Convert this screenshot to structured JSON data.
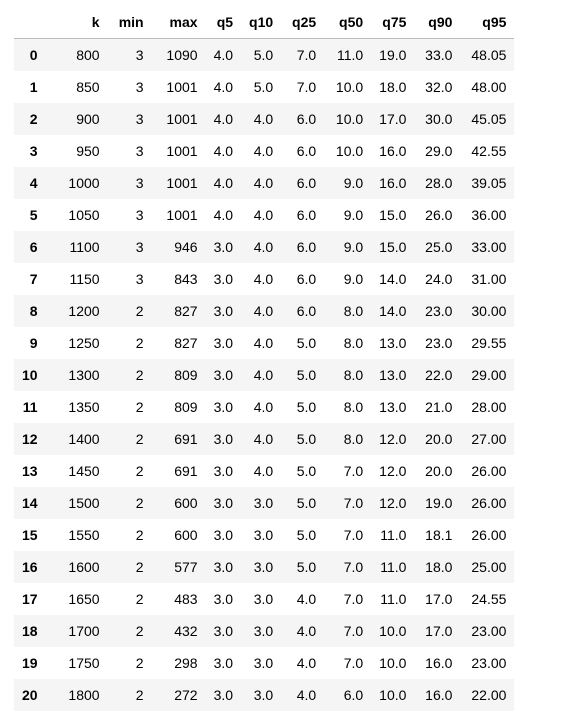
{
  "table": {
    "columns": [
      "",
      "k",
      "min",
      "max",
      "q5",
      "q10",
      "q25",
      "q50",
      "q75",
      "q90",
      "q95"
    ],
    "rows": [
      [
        "0",
        "800",
        "3",
        "1090",
        "4.0",
        "5.0",
        "7.0",
        "11.0",
        "19.0",
        "33.0",
        "48.05"
      ],
      [
        "1",
        "850",
        "3",
        "1001",
        "4.0",
        "5.0",
        "7.0",
        "10.0",
        "18.0",
        "32.0",
        "48.00"
      ],
      [
        "2",
        "900",
        "3",
        "1001",
        "4.0",
        "4.0",
        "6.0",
        "10.0",
        "17.0",
        "30.0",
        "45.05"
      ],
      [
        "3",
        "950",
        "3",
        "1001",
        "4.0",
        "4.0",
        "6.0",
        "10.0",
        "16.0",
        "29.0",
        "42.55"
      ],
      [
        "4",
        "1000",
        "3",
        "1001",
        "4.0",
        "4.0",
        "6.0",
        "9.0",
        "16.0",
        "28.0",
        "39.05"
      ],
      [
        "5",
        "1050",
        "3",
        "1001",
        "4.0",
        "4.0",
        "6.0",
        "9.0",
        "15.0",
        "26.0",
        "36.00"
      ],
      [
        "6",
        "1100",
        "3",
        "946",
        "3.0",
        "4.0",
        "6.0",
        "9.0",
        "15.0",
        "25.0",
        "33.00"
      ],
      [
        "7",
        "1150",
        "3",
        "843",
        "3.0",
        "4.0",
        "6.0",
        "9.0",
        "14.0",
        "24.0",
        "31.00"
      ],
      [
        "8",
        "1200",
        "2",
        "827",
        "3.0",
        "4.0",
        "6.0",
        "8.0",
        "14.0",
        "23.0",
        "30.00"
      ],
      [
        "9",
        "1250",
        "2",
        "827",
        "3.0",
        "4.0",
        "5.0",
        "8.0",
        "13.0",
        "23.0",
        "29.55"
      ],
      [
        "10",
        "1300",
        "2",
        "809",
        "3.0",
        "4.0",
        "5.0",
        "8.0",
        "13.0",
        "22.0",
        "29.00"
      ],
      [
        "11",
        "1350",
        "2",
        "809",
        "3.0",
        "4.0",
        "5.0",
        "8.0",
        "13.0",
        "21.0",
        "28.00"
      ],
      [
        "12",
        "1400",
        "2",
        "691",
        "3.0",
        "4.0",
        "5.0",
        "8.0",
        "12.0",
        "20.0",
        "27.00"
      ],
      [
        "13",
        "1450",
        "2",
        "691",
        "3.0",
        "4.0",
        "5.0",
        "7.0",
        "12.0",
        "20.0",
        "26.00"
      ],
      [
        "14",
        "1500",
        "2",
        "600",
        "3.0",
        "3.0",
        "5.0",
        "7.0",
        "12.0",
        "19.0",
        "26.00"
      ],
      [
        "15",
        "1550",
        "2",
        "600",
        "3.0",
        "3.0",
        "5.0",
        "7.0",
        "11.0",
        "18.1",
        "26.00"
      ],
      [
        "16",
        "1600",
        "2",
        "577",
        "3.0",
        "3.0",
        "5.0",
        "7.0",
        "11.0",
        "18.0",
        "25.00"
      ],
      [
        "17",
        "1650",
        "2",
        "483",
        "3.0",
        "3.0",
        "4.0",
        "7.0",
        "11.0",
        "17.0",
        "24.55"
      ],
      [
        "18",
        "1700",
        "2",
        "432",
        "3.0",
        "3.0",
        "4.0",
        "7.0",
        "10.0",
        "17.0",
        "23.00"
      ],
      [
        "19",
        "1750",
        "2",
        "298",
        "3.0",
        "3.0",
        "4.0",
        "7.0",
        "10.0",
        "16.0",
        "23.00"
      ],
      [
        "20",
        "1800",
        "2",
        "272",
        "3.0",
        "3.0",
        "4.0",
        "6.0",
        "10.0",
        "16.0",
        "22.00"
      ]
    ]
  },
  "colors": {
    "stripe": "#f5f5f5",
    "header_rule": "#bdbdbd",
    "text": "#000000"
  }
}
